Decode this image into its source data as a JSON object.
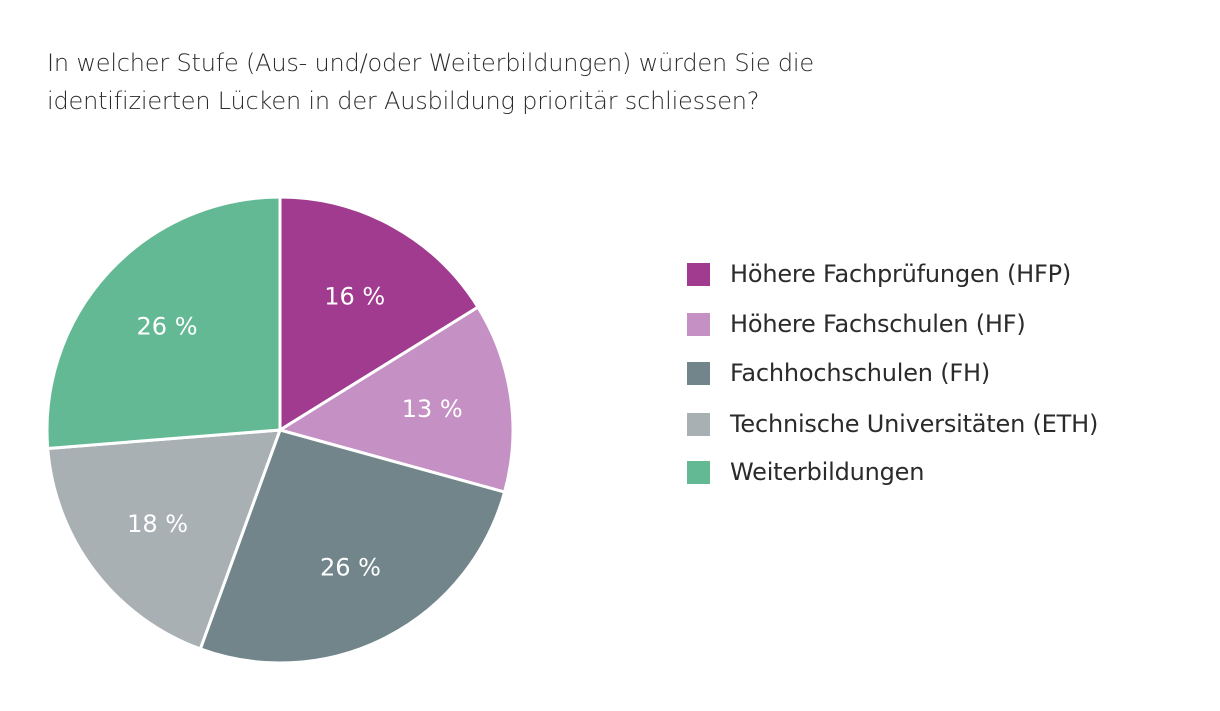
{
  "chart_data": {
    "type": "pie",
    "title": [
      "In welcher Stufe (Aus- und/oder Weiterbildungen) würden Sie die",
      "identifizierten Lücken in der Ausbildung prioritär schliessen?"
    ],
    "start_angle": "top",
    "direction": "clockwise",
    "legend_position": "right",
    "slices": [
      {
        "name": "Höhere Fachprüfungen (HFP)",
        "value": 16,
        "label": "16 %",
        "color": "#A03B8F"
      },
      {
        "name": "Höhere Fachschulen (HF)",
        "value": 13,
        "label": "13 %",
        "color": "#C590C3"
      },
      {
        "name": "Fachhochschulen (FH)",
        "value": 26,
        "label": "26 %",
        "color": "#71858A"
      },
      {
        "name": "Technische Universitäten (ETH)",
        "value": 18,
        "label": "18 %",
        "color": "#A9B0B3"
      },
      {
        "name": "Weiterbildungen",
        "value": 26,
        "label": "26 %",
        "color": "#64B995"
      }
    ]
  }
}
